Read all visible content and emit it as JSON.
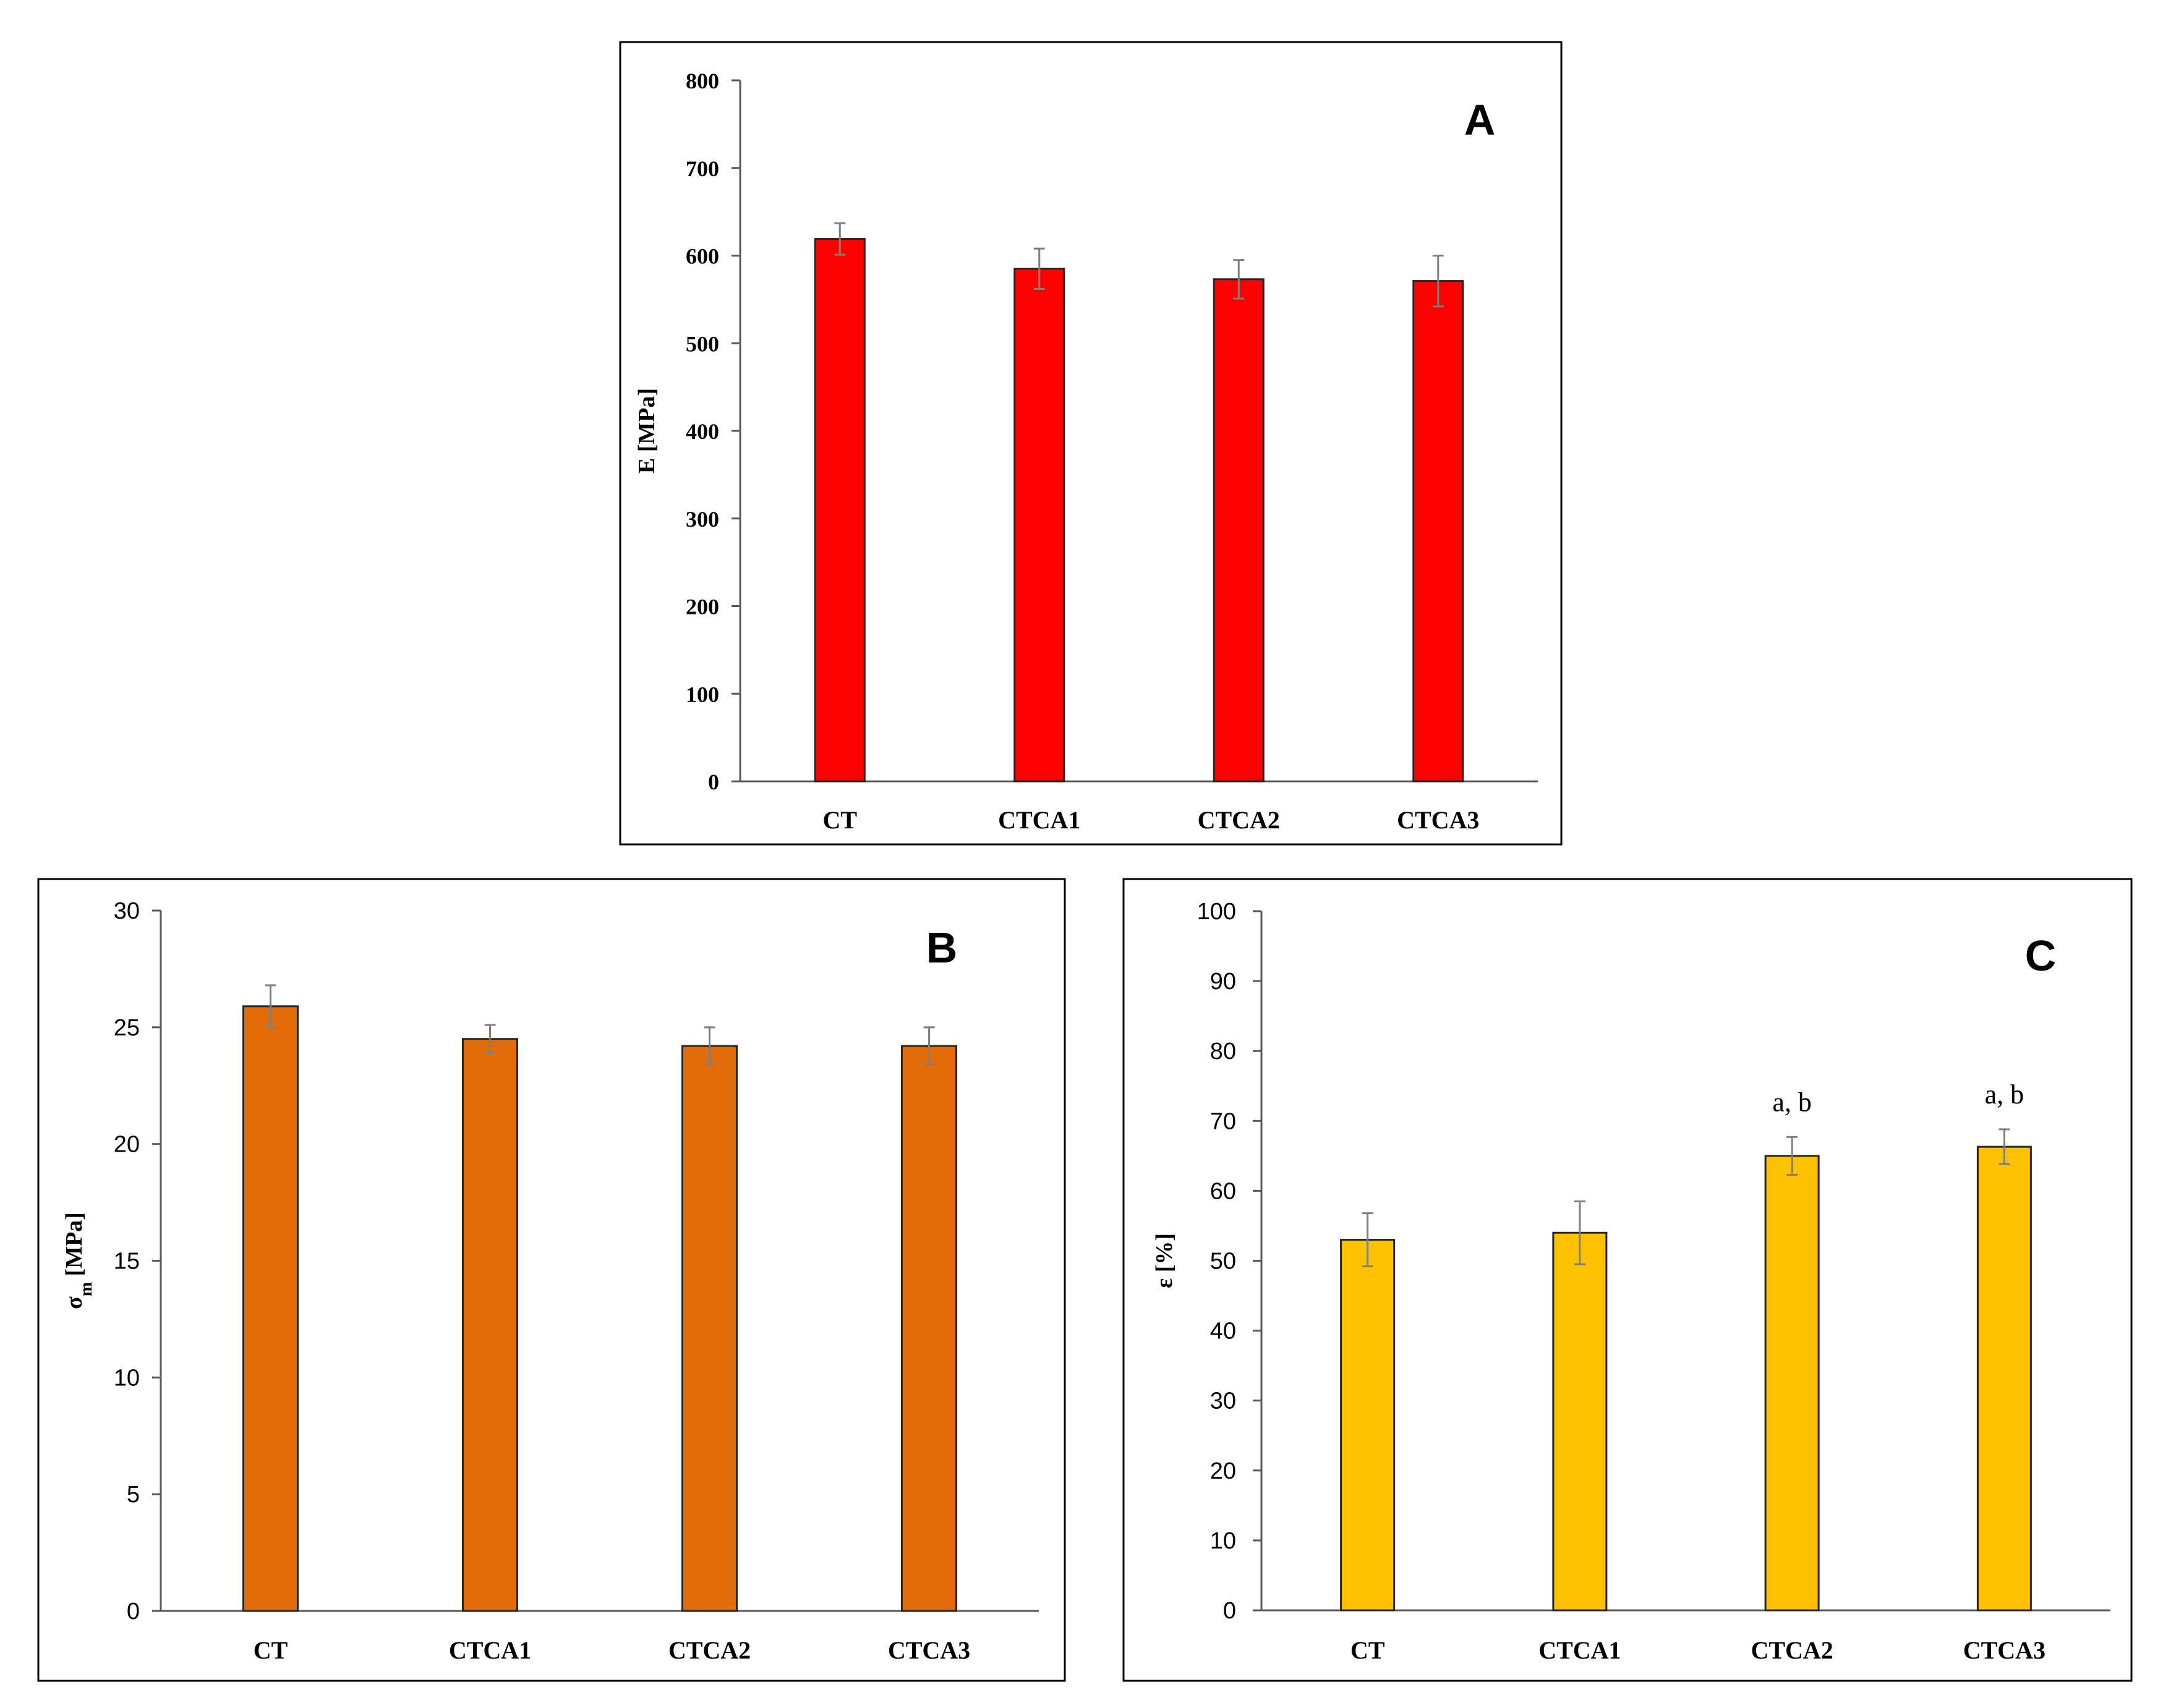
{
  "chart_data": [
    {
      "type": "bar",
      "panel_label": "A",
      "ylabel": "E [MPa]",
      "categories": [
        "CT",
        "CTCA1",
        "CTCA2",
        "CTCA3"
      ],
      "values": [
        619,
        585,
        573,
        571
      ],
      "errors": [
        18,
        23,
        22,
        29
      ],
      "ylim": [
        0,
        800
      ],
      "yticks": [
        0,
        100,
        200,
        300,
        400,
        500,
        600,
        700,
        800
      ],
      "bar_color": "#ff0000",
      "annotations": [
        "",
        "",
        "",
        ""
      ]
    },
    {
      "type": "bar",
      "panel_label": "B",
      "ylabel": "σm [MPa]",
      "ylabel_main": "σ",
      "ylabel_sub": "m",
      "ylabel_unit": " [MPa]",
      "categories": [
        "CT",
        "CTCA1",
        "CTCA2",
        "CTCA3"
      ],
      "values": [
        25.9,
        24.5,
        24.2,
        24.2
      ],
      "errors": [
        0.9,
        0.6,
        0.8,
        0.8
      ],
      "ylim": [
        0,
        30
      ],
      "yticks": [
        0,
        5,
        10,
        15,
        20,
        25,
        30
      ],
      "bar_color": "#e36c0a",
      "annotations": [
        "",
        "",
        "",
        ""
      ]
    },
    {
      "type": "bar",
      "panel_label": "C",
      "ylabel": "ε [%]",
      "categories": [
        "CT",
        "CTCA1",
        "CTCA2",
        "CTCA3"
      ],
      "values": [
        53,
        54,
        65,
        66.3
      ],
      "errors": [
        3.8,
        4.5,
        2.7,
        2.5
      ],
      "ylim": [
        0,
        100
      ],
      "yticks": [
        0,
        10,
        20,
        30,
        40,
        50,
        60,
        70,
        80,
        90,
        100
      ],
      "bar_color": "#ffc000",
      "annotations": [
        "",
        "",
        "a, b",
        "a, b"
      ]
    }
  ]
}
